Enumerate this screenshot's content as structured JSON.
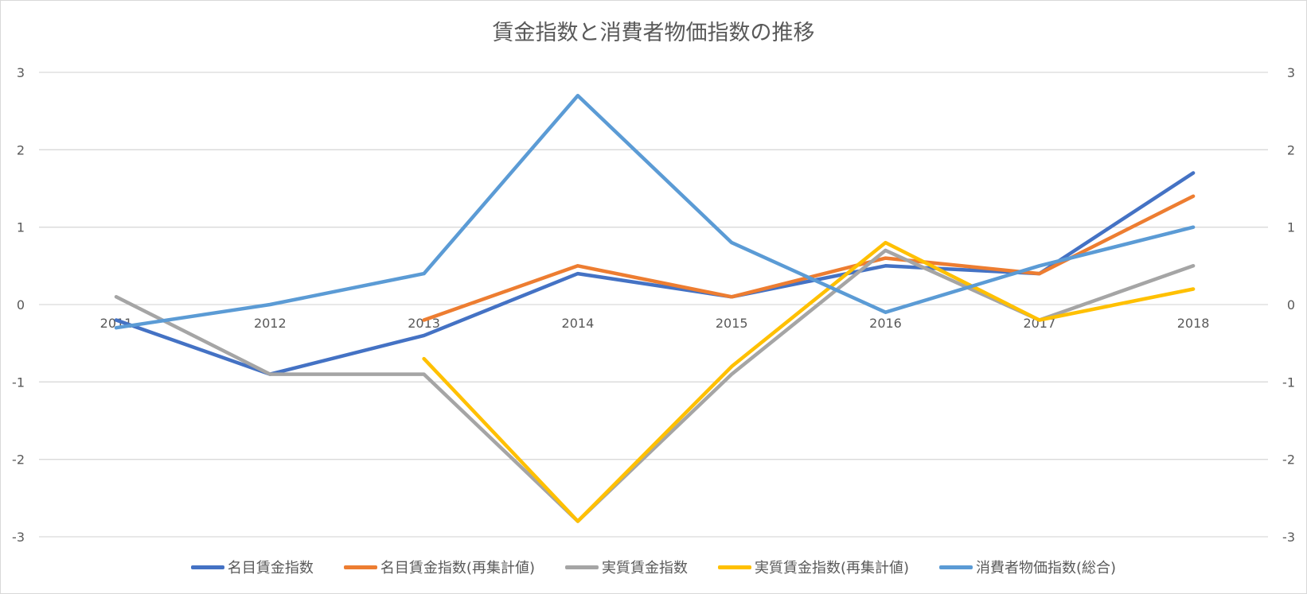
{
  "chart_data": {
    "type": "line",
    "title": "賃金指数と消費者物価指数の推移",
    "categories": [
      "2011",
      "2012",
      "2013",
      "2014",
      "2015",
      "2016",
      "2017",
      "2018"
    ],
    "ylim": [
      -3,
      3
    ],
    "yticks": [
      3,
      2,
      1,
      0,
      -1,
      -2,
      -3
    ],
    "secondary_ylim": [
      -3,
      3
    ],
    "grid": true,
    "legend_position": "bottom",
    "series": [
      {
        "name": "名目賃金指数",
        "color": "#4472c4",
        "values": [
          -0.2,
          -0.9,
          -0.4,
          0.4,
          0.1,
          0.5,
          0.4,
          1.7
        ]
      },
      {
        "name": "名目賃金指数(再集計値)",
        "color": "#ed7d31",
        "values": [
          null,
          null,
          -0.2,
          0.5,
          0.1,
          0.6,
          0.4,
          1.4
        ]
      },
      {
        "name": "実質賃金指数",
        "color": "#a5a5a5",
        "values": [
          0.1,
          -0.9,
          -0.9,
          -2.8,
          -0.9,
          0.7,
          -0.2,
          0.5
        ]
      },
      {
        "name": "実質賃金指数(再集計値)",
        "color": "#ffc000",
        "values": [
          null,
          null,
          -0.7,
          -2.8,
          -0.8,
          0.8,
          -0.2,
          0.2
        ]
      },
      {
        "name": "消費者物価指数(総合)",
        "color": "#5b9bd5",
        "values": [
          -0.3,
          0.0,
          0.4,
          2.7,
          0.8,
          -0.1,
          0.5,
          1.0
        ]
      }
    ]
  }
}
